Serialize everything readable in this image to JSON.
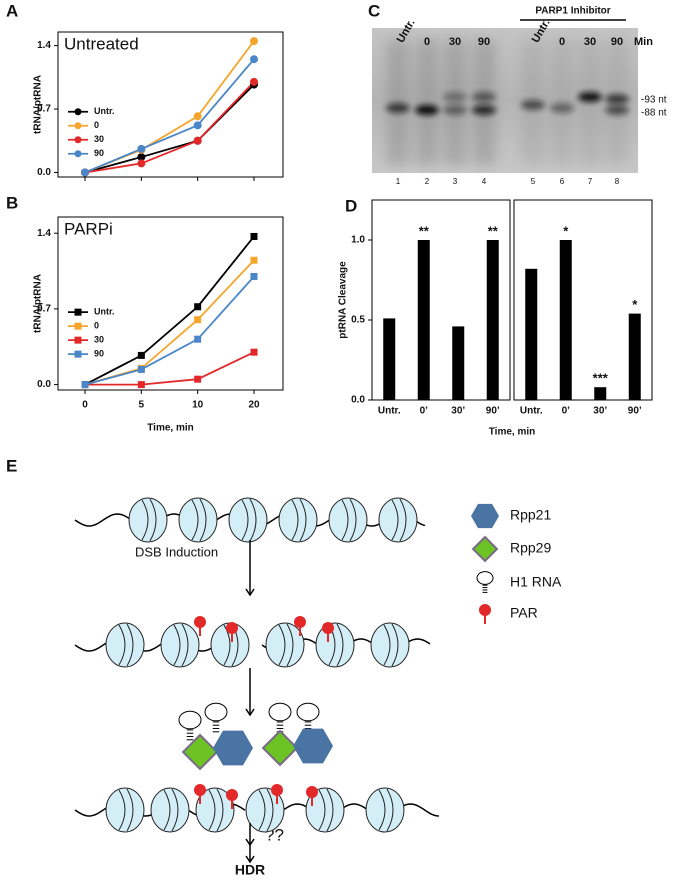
{
  "panel_labels": [
    "A",
    "B",
    "C",
    "D",
    "E"
  ],
  "chart_data": [
    {
      "type": "line",
      "title": "Untreated",
      "ylabel": "tRNA/ptRNA",
      "categories": [
        null,
        null,
        null,
        null
      ],
      "ylim": [
        -0.05,
        1.55
      ],
      "yticks": [
        {
          "value": 0,
          "label": "0.0"
        },
        0.7,
        1.4
      ],
      "marker": "circle",
      "legend": "center-left",
      "series": [
        {
          "name": "Untr.",
          "color": "#000000",
          "values": [
            0,
            0.17,
            0.35,
            0.97
          ]
        },
        {
          "name": "0",
          "color": "#f5a52c",
          "values": [
            0,
            0.25,
            0.62,
            1.45
          ]
        },
        {
          "name": "30",
          "color": "#e3282a",
          "values": [
            0,
            0.1,
            0.35,
            1.0
          ]
        },
        {
          "name": "90",
          "color": "#4a86c8",
          "values": [
            0,
            0.26,
            0.52,
            1.25
          ]
        }
      ]
    },
    {
      "type": "line",
      "title": "PARPi",
      "ylabel": "tRNA/ptRNA",
      "xlabel": "Time, min",
      "categories": [
        "0",
        "5",
        "10",
        "20"
      ],
      "ylim": [
        -0.05,
        1.55
      ],
      "yticks": [
        {
          "value": 0,
          "label": "0.0"
        },
        0.7,
        1.4
      ],
      "marker": "square",
      "legend": "center-left",
      "series": [
        {
          "name": "Untr.",
          "color": "#000000",
          "values": [
            0,
            0.27,
            0.72,
            1.37
          ]
        },
        {
          "name": "0",
          "color": "#f5a52c",
          "values": [
            0,
            0.15,
            0.6,
            1.15
          ]
        },
        {
          "name": "30",
          "color": "#e3282a",
          "values": [
            0,
            0,
            0.05,
            0.3
          ]
        },
        {
          "name": "90",
          "color": "#4a86c8",
          "values": [
            0,
            0.14,
            0.42,
            1.0
          ]
        }
      ]
    },
    {
      "type": "bar",
      "ylabel": "ptRNA Cleavage",
      "xlabel": "Time, min",
      "color": "#000000",
      "ylim": [
        0,
        1.25
      ],
      "yticks": [
        {
          "value": 0,
          "label": "0.0"
        },
        0.5,
        {
          "value": 1,
          "label": "1.0"
        }
      ],
      "facets": [
        {
          "categories": [
            "Untr.",
            "0’",
            "30’",
            "90’"
          ],
          "values": [
            0.51,
            1.0,
            0.46,
            1.0
          ],
          "annotations": [
            null,
            "**",
            null,
            "**"
          ]
        },
        {
          "categories": [
            "Untr.",
            "0’",
            "30’",
            "90’"
          ],
          "values": [
            0.82,
            1.0,
            0.08,
            0.54
          ],
          "annotations": [
            null,
            "*",
            "***",
            "*"
          ]
        }
      ]
    }
  ],
  "gel": {
    "lanes": [
      {
        "label": "Untr.",
        "number": 1
      },
      {
        "label": "0",
        "number": 2
      },
      {
        "label": "30",
        "number": 3
      },
      {
        "label": "90",
        "number": 4
      },
      {
        "label": "Untr.",
        "number": 5
      },
      {
        "label": "0",
        "number": 6
      },
      {
        "label": "30",
        "number": 7
      },
      {
        "label": "90",
        "number": 8
      }
    ],
    "group_label": "PARP1 Inhibitor",
    "unit_label": "Min",
    "size_markers": [
      "-93 nt",
      "-88 nt"
    ]
  },
  "diagram": {
    "step_label": "DSB Induction",
    "legend": [
      "Rpp21",
      "Rpp29",
      "H1 RNA",
      "PAR"
    ],
    "unknown": "??",
    "outcome": "HDR"
  }
}
